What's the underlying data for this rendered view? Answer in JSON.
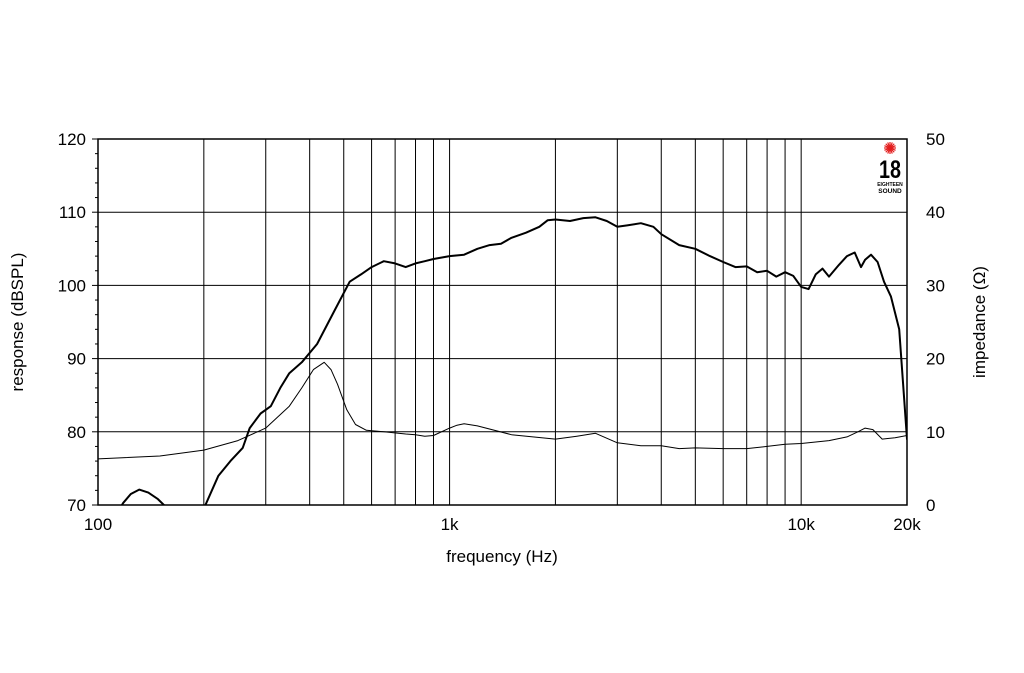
{
  "chart_data": {
    "type": "line",
    "xscale": "log",
    "xlim": [
      100,
      20000
    ],
    "xlabel": "frequency (Hz)",
    "x_ticks": [
      {
        "value": 100,
        "label": "100"
      },
      {
        "value": 1000,
        "label": "1k"
      },
      {
        "value": 10000,
        "label": "10k"
      },
      {
        "value": 20000,
        "label": "20k"
      }
    ],
    "grid_x": [
      200,
      300,
      400,
      500,
      600,
      700,
      800,
      900,
      1000,
      2000,
      3000,
      4000,
      5000,
      6000,
      7000,
      8000,
      9000,
      10000
    ],
    "ylabel_left": "response (dBSPL)",
    "ylim_left": [
      70,
      120
    ],
    "y_ticks_left": [
      "70",
      "80",
      "90",
      "100",
      "110",
      "120"
    ],
    "ylabel_right": "impedance (Ω)",
    "ylim_right": [
      0,
      50
    ],
    "y_ticks_right": [
      "0",
      "10",
      "20",
      "30",
      "40",
      "50"
    ],
    "grid": true,
    "series": [
      {
        "axis": "left",
        "color": "#000000",
        "width": "thick",
        "x": [
          110,
          118,
          124,
          131,
          139,
          148,
          154,
          158,
          200,
          220,
          238,
          258,
          270,
          290,
          310,
          330,
          350,
          380,
          420,
          470,
          520,
          560,
          600,
          650,
          700,
          750,
          800,
          850,
          900,
          1000,
          1100,
          1200,
          1300,
          1400,
          1500,
          1650,
          1800,
          1900,
          2000,
          2200,
          2400,
          2600,
          2800,
          3000,
          3200,
          3500,
          3800,
          4000,
          4500,
          5000,
          5500,
          6000,
          6500,
          7000,
          7500,
          8000,
          8500,
          9000,
          9500,
          10000,
          10500,
          11000,
          11500,
          12000,
          12800,
          13500,
          14200,
          14800,
          15200,
          15800,
          16500,
          17200,
          18000,
          19000,
          19600,
          20000
        ],
        "y": [
          68,
          70.3,
          71.5,
          72.1,
          71.7,
          70.8,
          70,
          68.5,
          69.5,
          74,
          76,
          77.8,
          80.5,
          82.5,
          83.5,
          86,
          88,
          89.5,
          92,
          96.5,
          100.5,
          101.5,
          102.5,
          103.3,
          103,
          102.5,
          103,
          103.3,
          103.6,
          104,
          104.2,
          105,
          105.5,
          105.7,
          106.5,
          107.2,
          108,
          108.9,
          109,
          108.8,
          109.2,
          109.3,
          108.8,
          108,
          108.2,
          108.5,
          108,
          107,
          105.5,
          105,
          104,
          103.2,
          102.5,
          102.6,
          101.8,
          102,
          101.2,
          101.8,
          101.3,
          99.8,
          99.5,
          101.5,
          102.3,
          101.2,
          102.8,
          104,
          104.5,
          102.5,
          103.5,
          104.2,
          103.2,
          100.5,
          98.5,
          94,
          85,
          79
        ]
      },
      {
        "axis": "right",
        "color": "#000000",
        "width": "thin",
        "x": [
          100,
          150,
          200,
          250,
          300,
          350,
          380,
          410,
          440,
          460,
          480,
          510,
          540,
          580,
          650,
          750,
          800,
          850,
          900,
          1000,
          1050,
          1100,
          1200,
          1500,
          2000,
          2300,
          2600,
          3000,
          3500,
          4000,
          4500,
          5000,
          6000,
          7000,
          8000,
          9000,
          10000,
          12000,
          13500,
          14500,
          15200,
          16000,
          17000,
          18500,
          20000
        ],
        "y": [
          6.3,
          6.7,
          7.5,
          8.8,
          10.5,
          13.5,
          16,
          18.5,
          19.5,
          18.5,
          16.5,
          13,
          11,
          10.2,
          10,
          9.7,
          9.6,
          9.4,
          9.5,
          10.5,
          10.9,
          11.1,
          10.8,
          9.6,
          9,
          9.4,
          9.8,
          8.5,
          8.1,
          8.1,
          7.7,
          7.8,
          7.7,
          7.7,
          8,
          8.3,
          8.4,
          8.8,
          9.3,
          10,
          10.5,
          10.3,
          9,
          9.2,
          9.5
        ]
      }
    ]
  },
  "logo": {
    "number": "18",
    "line1": "EIGHTEEN",
    "line2": "SOUND",
    "star_color": "#e31d1d"
  }
}
